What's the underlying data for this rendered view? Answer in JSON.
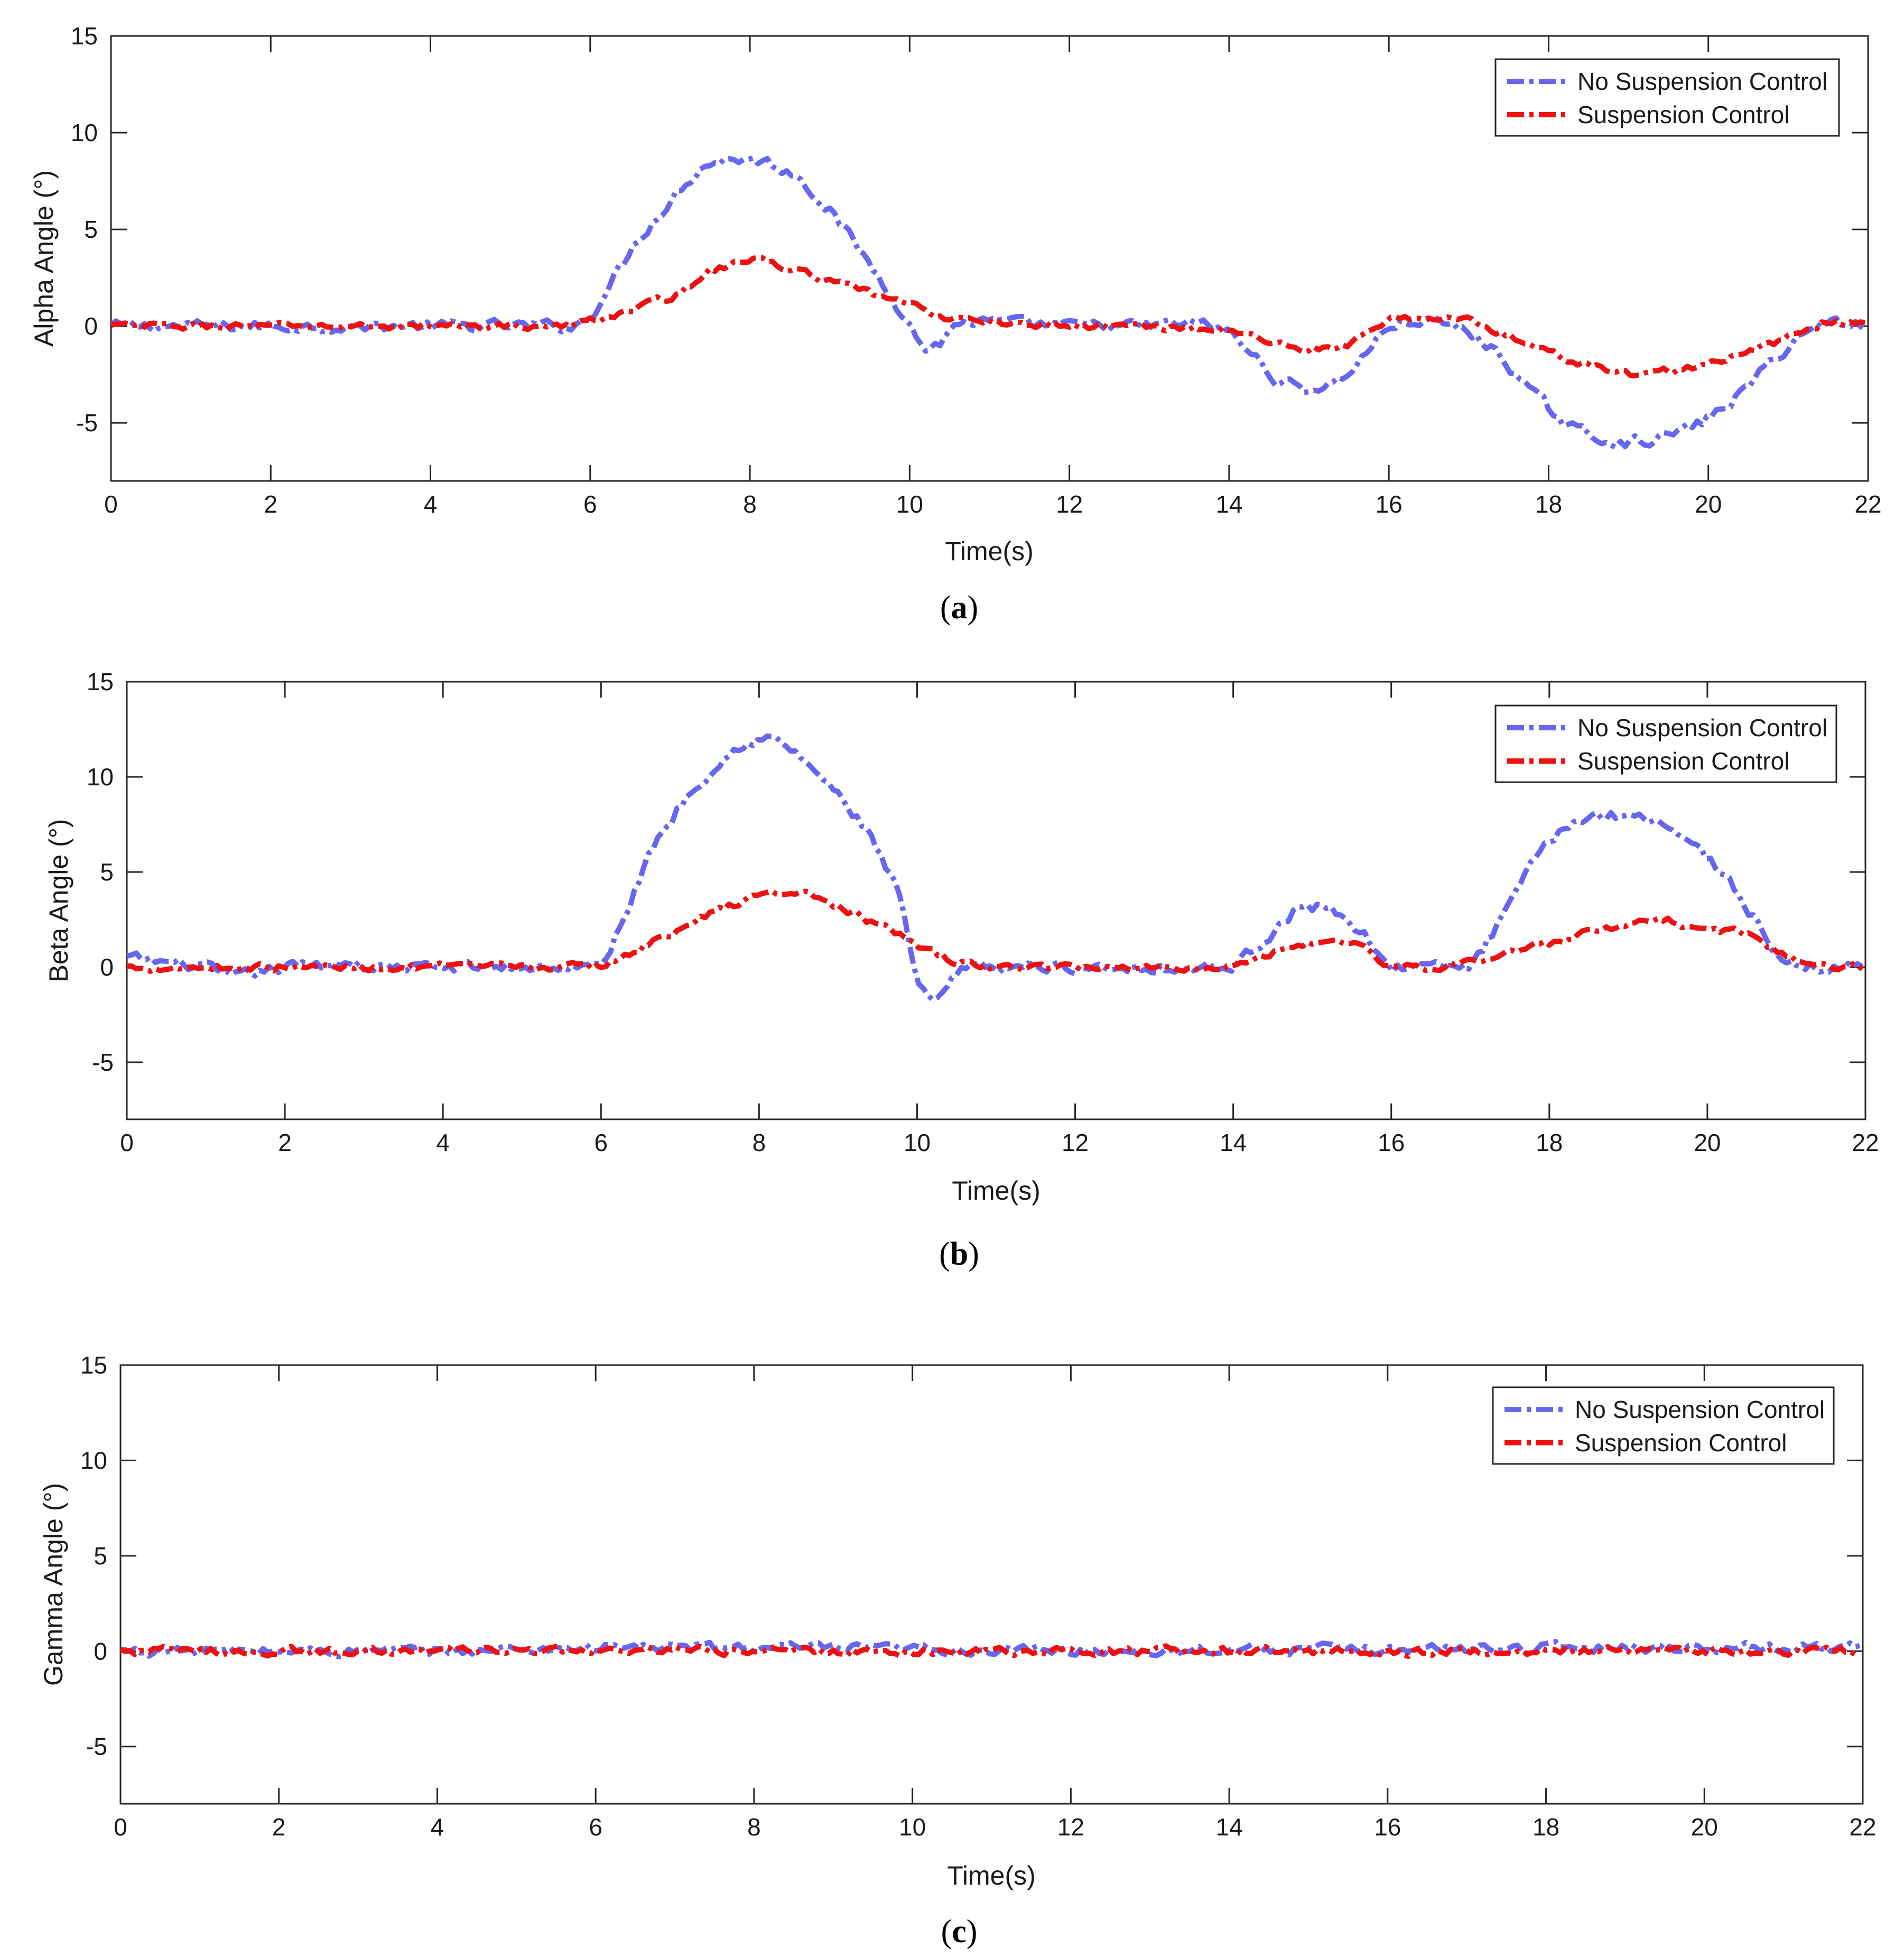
{
  "figure": {
    "panel_count": 3
  },
  "colors": {
    "no_control": "#6666EE",
    "control": "#EE1111",
    "axis": "#262626"
  },
  "chart_data": [
    {
      "type": "line",
      "caption_open": "(",
      "caption_letter": "a",
      "caption_close": ")",
      "xlabel": "Time(s)",
      "ylabel": "Alpha Angle (°)",
      "xlim": [
        0,
        22
      ],
      "ylim": [
        -8,
        15
      ],
      "xticks": [
        0,
        2,
        4,
        6,
        8,
        10,
        12,
        14,
        16,
        18,
        20,
        22
      ],
      "xtick_labels": [
        "0",
        "2",
        "4",
        "6",
        "8",
        "10",
        "12",
        "14",
        "16",
        "18",
        "20",
        "22"
      ],
      "yticks": [
        -5,
        0,
        5,
        10,
        15
      ],
      "ytick_labels": [
        "-5",
        "0",
        "5",
        "10",
        "15"
      ],
      "legend_position": "top-right",
      "series": [
        {
          "name": "No Suspension Control",
          "style": "dash-dot",
          "noise": 0.45,
          "x": [
            0,
            1,
            2,
            3,
            4,
            5,
            5.8,
            6,
            6.3,
            6.6,
            7,
            7.4,
            7.8,
            8.2,
            8.6,
            9,
            9.4,
            9.8,
            10,
            10.2,
            10.4,
            10.6,
            11,
            12,
            13,
            13.6,
            14,
            14.3,
            14.6,
            15,
            15.4,
            15.8,
            16,
            16.4,
            16.8,
            17,
            17.4,
            17.8,
            18.2,
            18.6,
            19,
            19.4,
            19.8,
            20,
            20.4,
            20.8,
            21.2,
            21.6,
            22
          ],
          "y": [
            0,
            0,
            0,
            0,
            0,
            0,
            0,
            0.5,
            2.5,
            4.5,
            6.5,
            8.3,
            8.7,
            8.5,
            7.8,
            6,
            3.8,
            1.5,
            0,
            -1.2,
            -0.8,
            0.2,
            0.2,
            0,
            0,
            0.2,
            -0.3,
            -1.5,
            -2.8,
            -3.3,
            -2.8,
            -1,
            0,
            0.3,
            0,
            -0.3,
            -1.5,
            -3.5,
            -5,
            -5.8,
            -6,
            -5.8,
            -5.2,
            -4.8,
            -3.5,
            -1.8,
            -0.3,
            0.3,
            0
          ]
        },
        {
          "name": "Suspension Control",
          "style": "dash-dot",
          "noise": 0.28,
          "x": [
            0,
            1,
            2,
            3,
            4,
            5,
            5.8,
            6,
            6.5,
            7,
            7.5,
            8,
            8.5,
            9,
            9.5,
            10,
            10.5,
            11,
            12,
            13,
            14,
            14.5,
            15,
            15.5,
            16,
            16.5,
            17,
            17.5,
            18,
            18.5,
            19,
            19.5,
            20,
            20.5,
            21,
            21.5,
            22
          ],
          "y": [
            0,
            0,
            0,
            0,
            0,
            0,
            0,
            0.3,
            0.8,
            1.5,
            2.8,
            3.5,
            3,
            2.3,
            1.7,
            1.1,
            0.4,
            0.2,
            0,
            0,
            -0.2,
            -0.8,
            -1.2,
            -1,
            0.3,
            0.5,
            0.3,
            -0.5,
            -1.4,
            -2,
            -2.5,
            -2.3,
            -2,
            -1.4,
            -0.6,
            0.3,
            0
          ]
        }
      ]
    },
    {
      "type": "line",
      "caption_open": "(",
      "caption_letter": "b",
      "caption_close": ")",
      "xlabel": "Time(s)",
      "ylabel": "Beta Angle (°)",
      "xlim": [
        0,
        22
      ],
      "ylim": [
        -8,
        15
      ],
      "xticks": [
        0,
        2,
        4,
        6,
        8,
        10,
        12,
        14,
        16,
        18,
        20,
        22
      ],
      "xtick_labels": [
        "0",
        "2",
        "4",
        "6",
        "8",
        "10",
        "12",
        "14",
        "16",
        "18",
        "20",
        "22"
      ],
      "yticks": [
        -5,
        0,
        5,
        10,
        15
      ],
      "ytick_labels": [
        "-5",
        "0",
        "5",
        "10",
        "15"
      ],
      "legend_position": "top-right",
      "series": [
        {
          "name": "No Suspension Control",
          "style": "dash-dot",
          "noise": 0.45,
          "x": [
            0,
            1,
            1.3,
            2,
            2.9,
            3,
            4,
            5,
            6,
            6.3,
            6.6,
            7,
            7.4,
            7.8,
            8.2,
            8.6,
            9,
            9.4,
            9.8,
            10,
            10.2,
            10.4,
            10.6,
            11,
            12,
            13,
            14,
            14.4,
            14.8,
            15.2,
            15.6,
            16,
            16.4,
            16.8,
            17,
            17.4,
            17.8,
            18.2,
            18.6,
            19,
            19.4,
            19.8,
            20.2,
            20.6,
            21,
            21.4,
            22
          ],
          "y": [
            0.5,
            0,
            -0.6,
            0,
            0.3,
            0,
            0,
            0,
            0,
            2.5,
            6,
            8.5,
            10.5,
            11.8,
            12,
            10.8,
            9,
            7,
            3.5,
            -1,
            -2,
            -1,
            0,
            0,
            0,
            0,
            0,
            1.5,
            3,
            3.2,
            2,
            0,
            0,
            0,
            0,
            2.5,
            5.5,
            7.5,
            8,
            8,
            7.8,
            6.5,
            5,
            2.5,
            0,
            0,
            0
          ]
        },
        {
          "name": "Suspension Control",
          "style": "dash-dot",
          "noise": 0.3,
          "x": [
            0,
            1,
            2,
            3,
            4,
            5,
            6,
            6.5,
            7,
            7.5,
            8,
            8.5,
            9,
            9.5,
            10,
            10.5,
            11,
            12,
            13,
            14,
            14.5,
            15,
            15.5,
            16,
            16.5,
            17,
            17.5,
            18,
            18.5,
            19,
            19.5,
            20,
            20.5,
            21,
            21.5,
            22
          ],
          "y": [
            0,
            0,
            0,
            0,
            0,
            0,
            0,
            1,
            2,
            3,
            3.8,
            4,
            3.2,
            2.2,
            1.2,
            0.2,
            0,
            0,
            0,
            0,
            0.8,
            1.3,
            1.4,
            0,
            0,
            0.3,
            0.8,
            1.2,
            1.8,
            2.2,
            2.4,
            2,
            1.8,
            0.5,
            0,
            0
          ]
        }
      ]
    },
    {
      "type": "line",
      "caption_open": "(",
      "caption_letter": "c",
      "caption_close": ")",
      "xlabel": "Time(s)",
      "ylabel": "Gamma Angle (°)",
      "xlim": [
        0,
        22
      ],
      "ylim": [
        -8,
        15
      ],
      "xticks": [
        0,
        2,
        4,
        6,
        8,
        10,
        12,
        14,
        16,
        18,
        20,
        22
      ],
      "xtick_labels": [
        "0",
        "2",
        "4",
        "6",
        "8",
        "10",
        "12",
        "14",
        "16",
        "18",
        "20",
        "22"
      ],
      "yticks": [
        -5,
        0,
        5,
        10,
        15
      ],
      "ytick_labels": [
        "-5",
        "0",
        "5",
        "10",
        "15"
      ],
      "legend_position": "top-right",
      "series": [
        {
          "name": "No Suspension Control",
          "style": "dash-dot",
          "noise": 0.4,
          "x": [
            0,
            2,
            4,
            6,
            8,
            10,
            12,
            14,
            16,
            18,
            20,
            22
          ],
          "y": [
            0,
            0,
            0,
            0.2,
            0.2,
            0.1,
            0,
            0.1,
            0.1,
            0.2,
            0.2,
            0.2
          ]
        },
        {
          "name": "Suspension Control",
          "style": "dash-dot",
          "noise": 0.35,
          "x": [
            0,
            2,
            4,
            6,
            8,
            10,
            12,
            14,
            16,
            18,
            20,
            22
          ],
          "y": [
            0,
            0,
            0,
            0,
            0,
            0,
            0,
            0,
            0,
            0,
            0,
            0
          ]
        }
      ]
    }
  ]
}
